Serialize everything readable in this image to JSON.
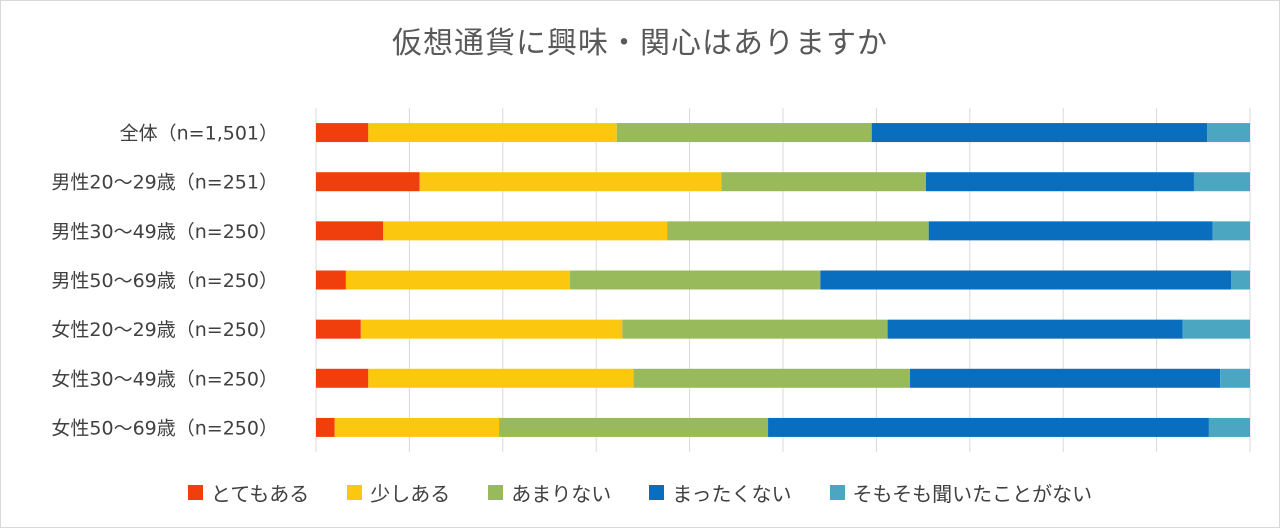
{
  "chart_data": {
    "type": "bar",
    "orientation": "horizontal",
    "stacked": true,
    "percent": true,
    "title": "仮想通貨に興味・関心はありますか",
    "categories": [
      "全体（n=1,501）",
      "男性20～29歳（n=251）",
      "男性30～49歳（n=250）",
      "男性50～69歳（n=250）",
      "女性20～29歳（n=250）",
      "女性30～49歳（n=250）",
      "女性50～69歳（n=250）"
    ],
    "series": [
      {
        "name": "とてもある",
        "color": "#f03e0c",
        "values": [
          5.6,
          11.1,
          7.2,
          3.2,
          4.8,
          5.6,
          2.0
        ]
      },
      {
        "name": "少しある",
        "color": "#fcc80f",
        "values": [
          26.6,
          32.3,
          30.4,
          24.0,
          28.0,
          28.4,
          17.6
        ]
      },
      {
        "name": "あまりない",
        "color": "#98ba5a",
        "values": [
          27.3,
          21.9,
          28.0,
          26.8,
          28.4,
          29.6,
          28.8
        ]
      },
      {
        "name": "まったくない",
        "color": "#0a6ebf",
        "values": [
          35.9,
          28.7,
          30.4,
          44.0,
          31.6,
          33.2,
          47.2
        ]
      },
      {
        "name": "そもそも聞いたことがない",
        "color": "#4ba6c2",
        "values": [
          4.6,
          6.0,
          4.0,
          2.0,
          7.2,
          3.2,
          4.4
        ]
      }
    ],
    "xlim": [
      0,
      100
    ],
    "grid": true,
    "legend_position": "bottom"
  }
}
